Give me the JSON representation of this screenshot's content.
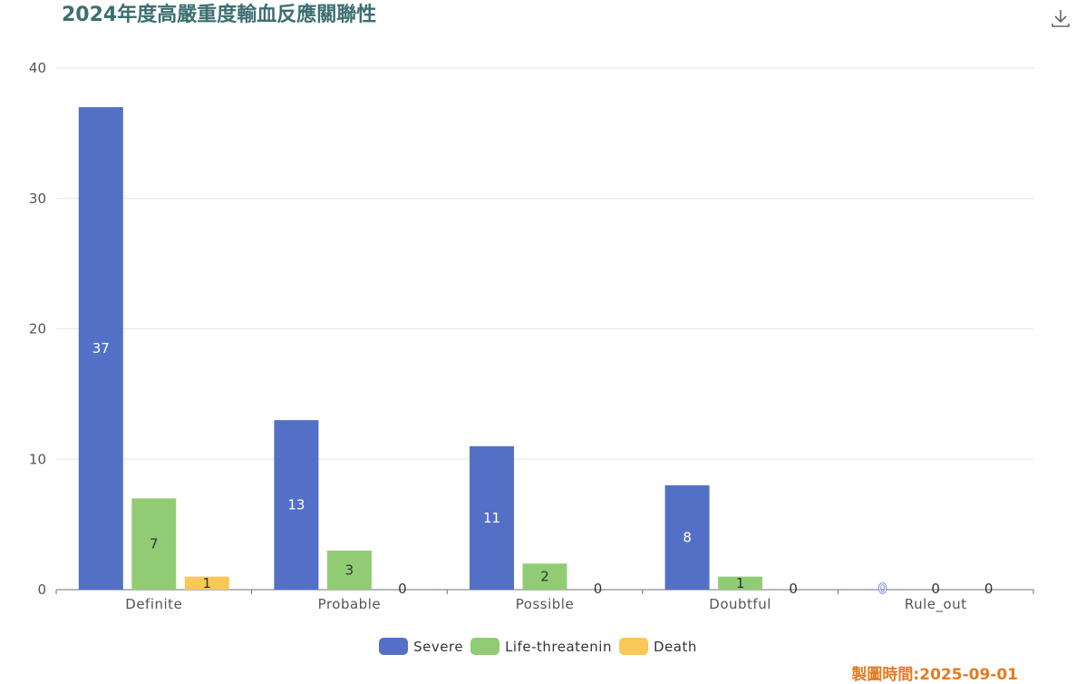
{
  "header": {
    "title": "2024年度高嚴重度輸血反應關聯性",
    "download_icon": "download-icon"
  },
  "chart_data": {
    "type": "bar",
    "categories": [
      "Definite",
      "Probable",
      "Possible",
      "Doubtful",
      "Rule_out"
    ],
    "series": [
      {
        "name": "Severe",
        "values": [
          37,
          13,
          11,
          8,
          0
        ],
        "color": "#5470c6",
        "label_color": "#ffffff"
      },
      {
        "name": "Life-threatenin",
        "values": [
          7,
          3,
          2,
          1,
          0
        ],
        "color": "#91cc75",
        "label_color": "#333333"
      },
      {
        "name": "Death",
        "values": [
          1,
          0,
          0,
          0,
          0
        ],
        "color": "#fac858",
        "label_color": "#333333"
      }
    ],
    "ylim": [
      0,
      40
    ],
    "yticks": [
      0,
      10,
      20,
      30,
      40
    ],
    "grid": true,
    "legend_position": "bottom-center"
  },
  "footer": {
    "label": "製圖時間:",
    "date": "2025-09-01"
  }
}
